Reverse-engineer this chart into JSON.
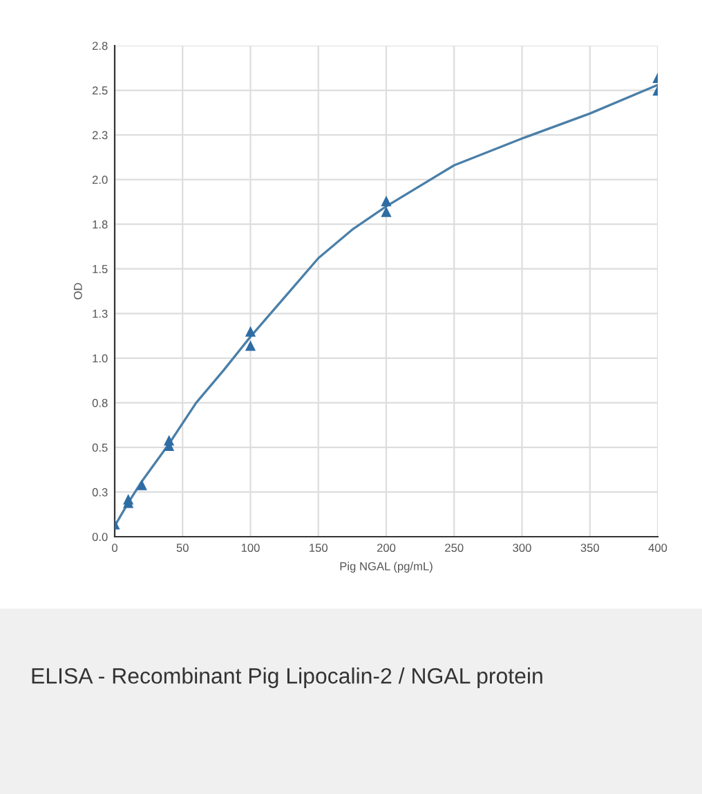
{
  "chart_data": {
    "type": "scatter",
    "xlabel": "Pig NGAL (pg/mL)",
    "ylabel": "OD",
    "annotations": [
      "ELISA - Recombinant Pig Lipocalin-2 / NGAL protein"
    ],
    "series": [
      {
        "type": "line",
        "marker": "none",
        "color": "#4a7fa8",
        "x": [
          0,
          10,
          20,
          40,
          60,
          80,
          100,
          125,
          150,
          175,
          200,
          250,
          300,
          350,
          400
        ],
        "values": [
          0.06,
          0.19,
          0.31,
          0.52,
          0.75,
          0.93,
          1.12,
          1.34,
          1.56,
          1.72,
          1.85,
          2.08,
          2.23,
          2.37,
          2.53
        ]
      },
      {
        "marker": "triangle",
        "color": "#2e6da4",
        "x": [
          0,
          10,
          10,
          20,
          40,
          40,
          100,
          100,
          200,
          200,
          400,
          400
        ],
        "values": [
          0.07,
          0.19,
          0.21,
          0.29,
          0.54,
          0.51,
          1.15,
          1.07,
          1.88,
          1.82,
          2.57,
          2.5
        ]
      }
    ],
    "grid": true,
    "xlim": [
      0,
      400
    ],
    "xticks": [
      0,
      50,
      100,
      150,
      200,
      250,
      300,
      350,
      400
    ],
    "ylim": [
      0,
      2.75
    ],
    "yticks": [
      {
        "value": 0,
        "label": "0.0"
      },
      {
        "value": 0.25,
        "label": "0.3"
      },
      {
        "value": 0.5,
        "label": "0.5"
      },
      {
        "value": 0.75,
        "label": "0.8"
      },
      {
        "value": 1.0,
        "label": "1.0"
      },
      {
        "value": 1.25,
        "label": "1.3"
      },
      {
        "value": 1.5,
        "label": "1.5"
      },
      {
        "value": 1.75,
        "label": "1.8"
      },
      {
        "value": 2.0,
        "label": "2.0"
      },
      {
        "value": 2.25,
        "label": "2.3"
      },
      {
        "value": 2.5,
        "label": "2.5"
      },
      {
        "value": 2.75,
        "label": "2.8"
      }
    ]
  }
}
